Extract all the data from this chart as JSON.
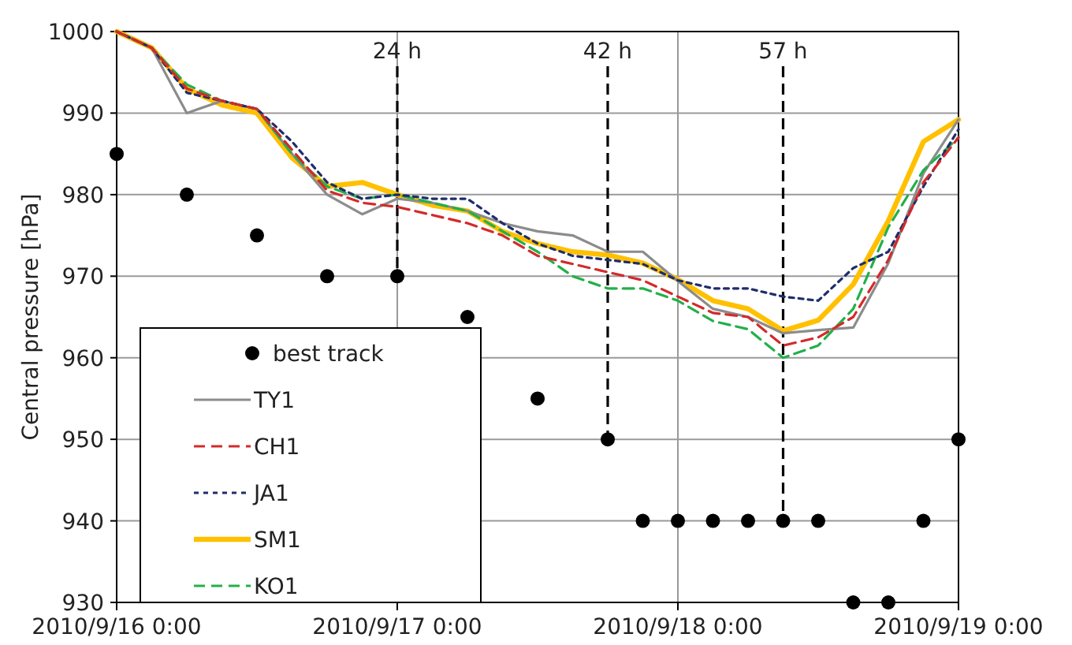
{
  "chart_data": {
    "type": "line",
    "ylabel": "Central pressure [hPa]",
    "x": [
      "2010-09-16T00:00",
      "2010-09-16T03:00",
      "2010-09-16T06:00",
      "2010-09-16T09:00",
      "2010-09-16T12:00",
      "2010-09-16T15:00",
      "2010-09-16T18:00",
      "2010-09-16T21:00",
      "2010-09-17T00:00",
      "2010-09-17T03:00",
      "2010-09-17T06:00",
      "2010-09-17T09:00",
      "2010-09-17T12:00",
      "2010-09-17T15:00",
      "2010-09-17T18:00",
      "2010-09-17T21:00",
      "2010-09-18T00:00",
      "2010-09-18T03:00",
      "2010-09-18T06:00",
      "2010-09-18T09:00",
      "2010-09-18T12:00",
      "2010-09-18T15:00",
      "2010-09-18T18:00",
      "2010-09-18T21:00",
      "2010-09-19T00:00"
    ],
    "series": [
      {
        "name": "best track",
        "type": "scatter",
        "marker": "circle",
        "color": "#000000",
        "x": [
          "2010-09-16T00:00",
          "2010-09-16T06:00",
          "2010-09-16T12:00",
          "2010-09-16T18:00",
          "2010-09-17T00:00",
          "2010-09-17T06:00",
          "2010-09-17T12:00",
          "2010-09-17T18:00",
          "2010-09-17T21:00",
          "2010-09-18T00:00",
          "2010-09-18T03:00",
          "2010-09-18T06:00",
          "2010-09-18T09:00",
          "2010-09-18T12:00",
          "2010-09-18T15:00",
          "2010-09-18T18:00",
          "2010-09-18T21:00",
          "2010-09-19T00:00"
        ],
        "values": [
          985,
          980,
          975,
          970,
          970,
          965,
          955,
          950,
          940,
          940,
          940,
          940,
          940,
          940,
          930,
          930,
          940,
          950
        ]
      },
      {
        "name": "TY1",
        "color": "#8c8c8c",
        "line_style": "solid",
        "values": [
          1000,
          998,
          990,
          991.5,
          990.5,
          985,
          980,
          977.6,
          979.5,
          979,
          978,
          976.5,
          975.5,
          975,
          973,
          973,
          969.4,
          966,
          965,
          963,
          963.4,
          963.7,
          971.6,
          982.6,
          989.2
        ]
      },
      {
        "name": "CH1",
        "color": "#d42a2a",
        "line_style": "dashed",
        "values": [
          1000,
          998,
          993,
          991.5,
          990.5,
          985.5,
          980.5,
          979,
          978.5,
          977.5,
          976.5,
          975,
          972.5,
          971.5,
          970.5,
          969.5,
          967.5,
          965.5,
          965,
          961.5,
          962.5,
          965,
          972,
          981.5,
          987
        ]
      },
      {
        "name": "JA1",
        "color": "#1f2d6b",
        "line_style": "dotted",
        "values": [
          1000,
          998,
          992.5,
          991.5,
          990.5,
          986.5,
          981.5,
          979.5,
          980,
          979.5,
          979.5,
          976.5,
          974,
          972.5,
          972,
          971.5,
          969.5,
          968.5,
          968.5,
          967.5,
          967,
          971,
          973,
          981,
          988
        ]
      },
      {
        "name": "SM1",
        "color": "#ffc000",
        "line_style": "solid",
        "values": [
          1000,
          998,
          993,
          991,
          990,
          984.5,
          981,
          981.5,
          980,
          978.7,
          978,
          975.5,
          974,
          973,
          972.6,
          971.6,
          969.6,
          967,
          966,
          963.3,
          964.6,
          969,
          976.8,
          986.5,
          989.2
        ]
      },
      {
        "name": "KO1",
        "color": "#22b04a",
        "line_style": "dashed",
        "values": [
          1000,
          998,
          993.5,
          991.5,
          990.5,
          985,
          981,
          979.5,
          980,
          979,
          978,
          975.5,
          973,
          970,
          968.5,
          968.5,
          967,
          964.5,
          963.5,
          960,
          961.5,
          966,
          976,
          983,
          987
        ]
      }
    ],
    "xlim": [
      "2010-09-16T00:00",
      "2010-09-19T00:00"
    ],
    "xticks": [
      {
        "value": "2010-09-16T00:00",
        "label": "2010/9/16 0:00"
      },
      {
        "value": "2010-09-17T00:00",
        "label": "2010/9/17 0:00"
      },
      {
        "value": "2010-09-18T00:00",
        "label": "2010/9/18 0:00"
      },
      {
        "value": "2010-09-19T00:00",
        "label": "2010/9/19 0:00"
      }
    ],
    "ylim": [
      930,
      1000
    ],
    "yticks": [
      930,
      940,
      950,
      960,
      970,
      980,
      990,
      1000
    ],
    "grid": true,
    "legend": "bottom left",
    "marker": "none",
    "ref_lines": [
      {
        "axis": "x",
        "value": "2010-09-17T00:00",
        "label": "24 h",
        "color": "#000000",
        "line_style": "dashed"
      },
      {
        "axis": "x",
        "value": "2010-09-17T18:00",
        "label": "42 h",
        "color": "#000000",
        "line_style": "dashed"
      },
      {
        "axis": "x",
        "value": "2010-09-18T09:00",
        "label": "57 h",
        "color": "#000000",
        "line_style": "dashed"
      }
    ]
  }
}
